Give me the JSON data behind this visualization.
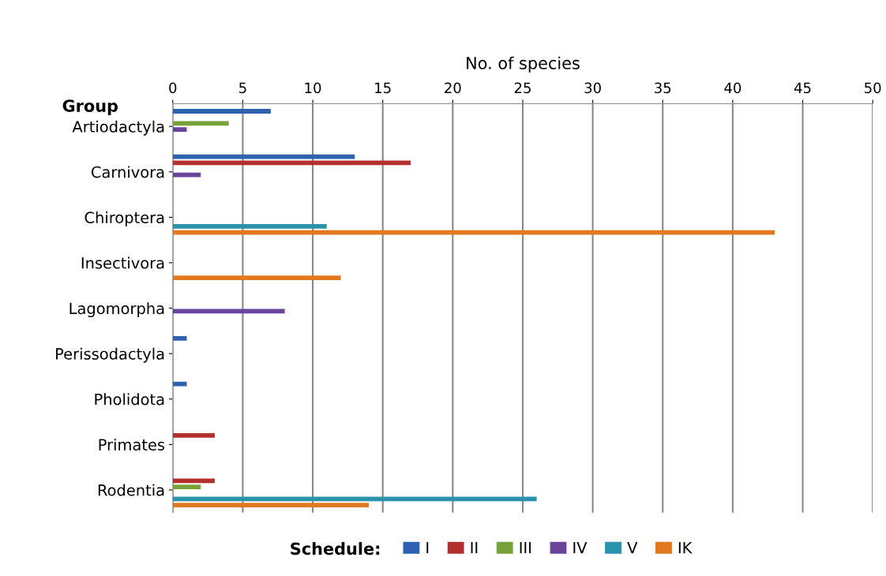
{
  "chart_data": {
    "type": "bar",
    "orientation": "horizontal",
    "xlabel": "No. of species",
    "ylabel": "Group",
    "legend_title": "Schedule:",
    "categories": [
      "Artiodactyla",
      "Carnivora",
      "Chiroptera",
      "Insectivora",
      "Lagomorpha",
      "Perissodactyla",
      "Pholidota",
      "Primates",
      "Rodentia"
    ],
    "series": [
      {
        "name": "I",
        "color": "#2e62b0",
        "values": [
          7,
          13,
          0,
          0,
          0,
          1,
          1,
          0,
          0
        ]
      },
      {
        "name": "II",
        "color": "#b3302e",
        "values": [
          0,
          17,
          0,
          0,
          0,
          0,
          0,
          3,
          3
        ]
      },
      {
        "name": "III",
        "color": "#77a23a",
        "values": [
          4,
          0,
          0,
          0,
          0,
          0,
          0,
          0,
          2
        ]
      },
      {
        "name": "IV",
        "color": "#6a449a",
        "values": [
          1,
          2,
          0,
          0,
          8,
          0,
          0,
          0,
          0
        ]
      },
      {
        "name": "V",
        "color": "#2a93ab",
        "values": [
          0,
          0,
          11,
          0,
          0,
          0,
          0,
          0,
          26
        ]
      },
      {
        "name": "IK",
        "color": "#e2791e",
        "values": [
          0,
          0,
          43,
          12,
          0,
          0,
          0,
          0,
          14
        ]
      }
    ],
    "xlim": [
      0,
      50
    ],
    "xticks": [
      0,
      5,
      10,
      15,
      20,
      25,
      30,
      35,
      40,
      45,
      50
    ],
    "grid": "x",
    "legend": "bottom"
  }
}
